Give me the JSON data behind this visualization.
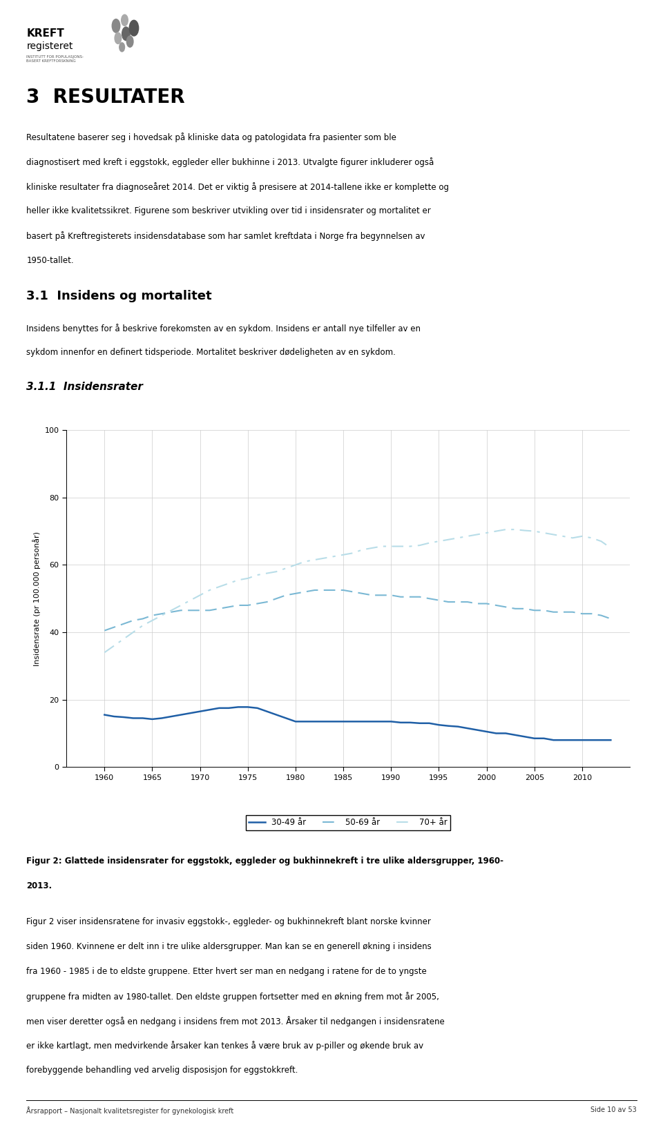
{
  "title_section": "3  RESULTATER",
  "intro_text": "Resultatene baserer seg i hovedsak på kliniske data og patologidata fra pasienter som ble\ndiagnostisert med kreft i eggstokk, eggleder eller bukhinne i 2013. Utvalgte figurer inkluderer også\nkliniske resultater fra diagnoseåret 2014. Det er viktig å presisere at 2014-tallene ikke er komplette og\nheller ikke kvalitetssikret. Figurene som beskriver utvikling over tid i insidensrater og mortalitet er\nbasert på Kreftregisterets insidensdatabase som har samlet kreftdata i Norge fra begynnelsen av\n1950-tallet.",
  "section_31": "3.1  Insidens og mortalitet",
  "section_31_text": "Insidens benyttes for å beskrive forekomsten av en sykdom. Insidens er antall nye tilfeller av en\nsykdom innenfor en definert tidsperiode. Mortalitet beskriver dødeligheten av en sykdom.",
  "section_311": "3.1.1  Insidensrater",
  "ylabel": "Insidensrate (pr 100.000 personår)",
  "xlim": [
    1956,
    2015
  ],
  "ylim": [
    0,
    100
  ],
  "yticks": [
    0,
    20,
    40,
    60,
    80,
    100
  ],
  "xticks": [
    1960,
    1965,
    1970,
    1975,
    1980,
    1985,
    1990,
    1995,
    2000,
    2005,
    2010
  ],
  "years": [
    1960,
    1961,
    1962,
    1963,
    1964,
    1965,
    1966,
    1967,
    1968,
    1969,
    1970,
    1971,
    1972,
    1973,
    1974,
    1975,
    1976,
    1977,
    1978,
    1979,
    1980,
    1981,
    1982,
    1983,
    1984,
    1985,
    1986,
    1987,
    1988,
    1989,
    1990,
    1991,
    1992,
    1993,
    1994,
    1995,
    1996,
    1997,
    1998,
    1999,
    2000,
    2001,
    2002,
    2003,
    2004,
    2005,
    2006,
    2007,
    2008,
    2009,
    2010,
    2011,
    2012,
    2013
  ],
  "series_30_49": [
    15.5,
    15.0,
    14.8,
    14.5,
    14.5,
    14.2,
    14.5,
    15.0,
    15.5,
    16.0,
    16.5,
    17.0,
    17.5,
    17.5,
    17.8,
    17.8,
    17.5,
    16.5,
    15.5,
    14.5,
    13.5,
    13.5,
    13.5,
    13.5,
    13.5,
    13.5,
    13.5,
    13.5,
    13.5,
    13.5,
    13.5,
    13.2,
    13.2,
    13.0,
    13.0,
    12.5,
    12.2,
    12.0,
    11.5,
    11.0,
    10.5,
    10.0,
    10.0,
    9.5,
    9.0,
    8.5,
    8.5,
    8.0,
    8.0,
    8.0,
    8.0,
    8.0,
    8.0,
    8.0
  ],
  "series_50_69": [
    40.5,
    41.5,
    42.5,
    43.5,
    44.0,
    45.0,
    45.5,
    46.0,
    46.5,
    46.5,
    46.5,
    46.5,
    47.0,
    47.5,
    48.0,
    48.0,
    48.5,
    49.0,
    50.0,
    51.0,
    51.5,
    52.0,
    52.5,
    52.5,
    52.5,
    52.5,
    52.0,
    51.5,
    51.0,
    51.0,
    51.0,
    50.5,
    50.5,
    50.5,
    50.0,
    49.5,
    49.0,
    49.0,
    49.0,
    48.5,
    48.5,
    48.0,
    47.5,
    47.0,
    47.0,
    46.5,
    46.5,
    46.0,
    46.0,
    46.0,
    45.5,
    45.5,
    45.0,
    44.0
  ],
  "series_70plus": [
    34.0,
    36.0,
    38.0,
    40.0,
    42.0,
    43.5,
    45.0,
    46.5,
    48.0,
    49.5,
    51.0,
    52.5,
    53.5,
    54.5,
    55.5,
    56.0,
    57.0,
    57.5,
    58.0,
    59.0,
    60.0,
    61.0,
    61.5,
    62.0,
    62.5,
    63.0,
    63.5,
    64.5,
    65.0,
    65.5,
    65.5,
    65.5,
    65.5,
    65.8,
    66.5,
    67.0,
    67.5,
    68.0,
    68.5,
    69.0,
    69.5,
    70.0,
    70.5,
    70.5,
    70.2,
    70.0,
    69.5,
    69.0,
    68.5,
    68.0,
    68.5,
    68.0,
    67.0,
    65.0
  ],
  "color_30_49": "#1f5fa6",
  "color_50_69": "#7ab8d4",
  "color_70plus": "#b8dde8",
  "legend_labels": [
    "30-49 år",
    "50-69 år",
    "70+ år"
  ],
  "fig_caption": "Figur 2: Glattede insidensrater for eggstokk, eggleder og bukhinnekreft i tre ulike aldersgrupper, 1960-\n2013.",
  "body_text": "Figur 2 viser insidensratene for invasiv eggstokk-, eggleder- og bukhinnekreft blant norske kvinner\nsiden 1960. Kvinnene er delt inn i tre ulike aldersgrupper. Man kan se en generell økning i insidens\nfra 1960 - 1985 i de to eldste gruppene. Etter hvert ser man en nedgang i ratene for de to yngste\ngruppene fra midten av 1980-tallet. Den eldste gruppen fortsetter med en økning frem mot år 2005,\nmen viser deretter også en nedgang i insidens frem mot 2013. Årsaker til nedgangen i insidensratene\ner ikke kartlagt, men medvirkende årsaker kan tenkes å være bruk av p-piller og økende bruk av\nforebyggende behandling ved arvelig disposisjon for eggstokkreft.",
  "footer_left": "Årsrapport – Nasjonalt kvalitetsregister for gynekologisk kreft",
  "footer_right": "Side 10 av 53",
  "background_color": "#ffffff",
  "grid_color": "#cccccc"
}
